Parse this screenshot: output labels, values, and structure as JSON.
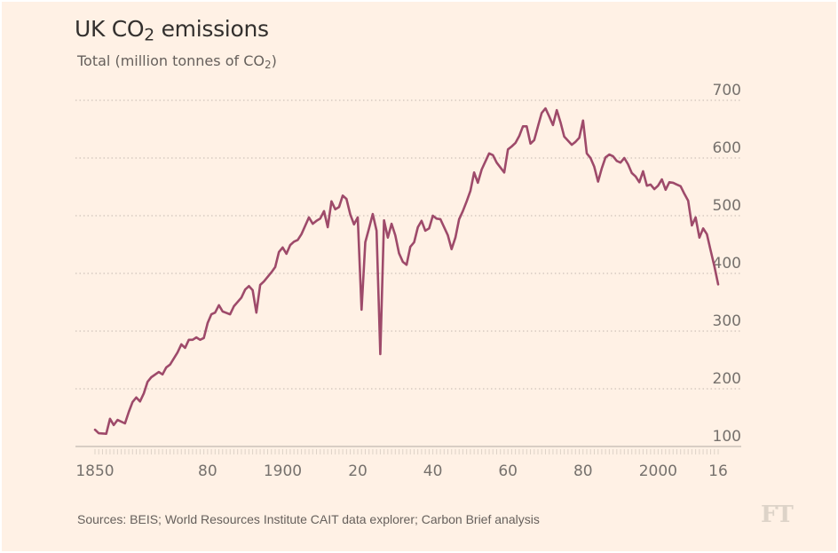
{
  "chart_data": {
    "type": "line",
    "title_parts": [
      "UK CO",
      "2",
      " emissions"
    ],
    "subtitle_parts": [
      "Total (million tonnes of CO",
      "2",
      ")"
    ],
    "title": "UK CO2 emissions",
    "subtitle": "Total (million tonnes of CO2)",
    "xlabel": "",
    "ylabel": "Total (million tonnes of CO2)",
    "xlim": [
      1850,
      2016
    ],
    "ylim": [
      100,
      700
    ],
    "grid": true,
    "y_axis_side": "right",
    "yticks": [
      100,
      200,
      300,
      400,
      500,
      600,
      700
    ],
    "ytick_labels": [
      "100",
      "200",
      "300",
      "400",
      "500",
      "600",
      "700"
    ],
    "xticks": [
      1850,
      1880,
      1900,
      1920,
      1940,
      1960,
      1980,
      2000,
      2016
    ],
    "xtick_labels": [
      "1850",
      "80",
      "1900",
      "20",
      "40",
      "60",
      "80",
      "2000",
      "16"
    ],
    "line_color": "#9e4a6a",
    "series": [
      {
        "name": "UK CO2 emissions",
        "points": [
          [
            1850,
            129
          ],
          [
            1851,
            123
          ],
          [
            1853,
            122
          ],
          [
            1854,
            148
          ],
          [
            1855,
            137
          ],
          [
            1856,
            146
          ],
          [
            1858,
            140
          ],
          [
            1859,
            160
          ],
          [
            1860,
            177
          ],
          [
            1861,
            185
          ],
          [
            1862,
            178
          ],
          [
            1863,
            192
          ],
          [
            1864,
            212
          ],
          [
            1865,
            220
          ],
          [
            1867,
            229
          ],
          [
            1868,
            225
          ],
          [
            1869,
            237
          ],
          [
            1870,
            242
          ],
          [
            1872,
            263
          ],
          [
            1873,
            277
          ],
          [
            1874,
            271
          ],
          [
            1875,
            285
          ],
          [
            1876,
            285
          ],
          [
            1877,
            289
          ],
          [
            1878,
            285
          ],
          [
            1879,
            288
          ],
          [
            1880,
            314
          ],
          [
            1881,
            329
          ],
          [
            1882,
            332
          ],
          [
            1883,
            345
          ],
          [
            1884,
            334
          ],
          [
            1886,
            329
          ],
          [
            1887,
            343
          ],
          [
            1889,
            358
          ],
          [
            1890,
            372
          ],
          [
            1891,
            378
          ],
          [
            1892,
            371
          ],
          [
            1893,
            332
          ],
          [
            1894,
            380
          ],
          [
            1895,
            386
          ],
          [
            1897,
            402
          ],
          [
            1898,
            411
          ],
          [
            1899,
            437
          ],
          [
            1900,
            445
          ],
          [
            1901,
            434
          ],
          [
            1902,
            449
          ],
          [
            1903,
            455
          ],
          [
            1904,
            458
          ],
          [
            1905,
            468
          ],
          [
            1907,
            497
          ],
          [
            1908,
            486
          ],
          [
            1909,
            491
          ],
          [
            1910,
            495
          ],
          [
            1911,
            508
          ],
          [
            1912,
            480
          ],
          [
            1913,
            525
          ],
          [
            1914,
            511
          ],
          [
            1915,
            515
          ],
          [
            1916,
            535
          ],
          [
            1917,
            529
          ],
          [
            1918,
            502
          ],
          [
            1919,
            485
          ],
          [
            1920,
            497
          ],
          [
            1921,
            337
          ],
          [
            1922,
            454
          ],
          [
            1923,
            478
          ],
          [
            1924,
            503
          ],
          [
            1925,
            474
          ],
          [
            1926,
            260
          ],
          [
            1927,
            492
          ],
          [
            1928,
            462
          ],
          [
            1929,
            486
          ],
          [
            1930,
            466
          ],
          [
            1931,
            435
          ],
          [
            1932,
            420
          ],
          [
            1933,
            415
          ],
          [
            1934,
            446
          ],
          [
            1935,
            454
          ],
          [
            1936,
            480
          ],
          [
            1937,
            491
          ],
          [
            1938,
            474
          ],
          [
            1939,
            478
          ],
          [
            1940,
            500
          ],
          [
            1941,
            495
          ],
          [
            1942,
            494
          ],
          [
            1944,
            466
          ],
          [
            1945,
            442
          ],
          [
            1946,
            462
          ],
          [
            1947,
            494
          ],
          [
            1948,
            508
          ],
          [
            1949,
            525
          ],
          [
            1950,
            543
          ],
          [
            1951,
            575
          ],
          [
            1952,
            557
          ],
          [
            1953,
            580
          ],
          [
            1955,
            608
          ],
          [
            1956,
            605
          ],
          [
            1957,
            592
          ],
          [
            1959,
            575
          ],
          [
            1960,
            615
          ],
          [
            1961,
            620
          ],
          [
            1962,
            626
          ],
          [
            1963,
            638
          ],
          [
            1964,
            655
          ],
          [
            1965,
            655
          ],
          [
            1966,
            625
          ],
          [
            1967,
            631
          ],
          [
            1968,
            655
          ],
          [
            1969,
            678
          ],
          [
            1970,
            686
          ],
          [
            1971,
            672
          ],
          [
            1972,
            657
          ],
          [
            1973,
            683
          ],
          [
            1974,
            662
          ],
          [
            1975,
            637
          ],
          [
            1977,
            623
          ],
          [
            1978,
            628
          ],
          [
            1979,
            635
          ],
          [
            1980,
            665
          ],
          [
            1981,
            608
          ],
          [
            1982,
            600
          ],
          [
            1983,
            585
          ],
          [
            1984,
            559
          ],
          [
            1985,
            582
          ],
          [
            1986,
            601
          ],
          [
            1987,
            606
          ],
          [
            1988,
            603
          ],
          [
            1989,
            595
          ],
          [
            1990,
            592
          ],
          [
            1991,
            600
          ],
          [
            1992,
            589
          ],
          [
            1993,
            574
          ],
          [
            1994,
            568
          ],
          [
            1995,
            558
          ],
          [
            1996,
            577
          ],
          [
            1997,
            552
          ],
          [
            1998,
            554
          ],
          [
            1999,
            546
          ],
          [
            2000,
            552
          ],
          [
            2001,
            563
          ],
          [
            2002,
            545
          ],
          [
            2003,
            558
          ],
          [
            2004,
            557
          ],
          [
            2005,
            554
          ],
          [
            2006,
            551
          ],
          [
            2007,
            538
          ],
          [
            2008,
            526
          ],
          [
            2009,
            483
          ],
          [
            2010,
            497
          ],
          [
            2011,
            462
          ],
          [
            2012,
            478
          ],
          [
            2013,
            468
          ],
          [
            2014,
            440
          ],
          [
            2015,
            412
          ],
          [
            2016,
            381
          ]
        ]
      }
    ],
    "source": "Sources: BEIS; World Resources Institute CAIT data explorer; Carbon Brief analysis",
    "logo": "FT"
  }
}
